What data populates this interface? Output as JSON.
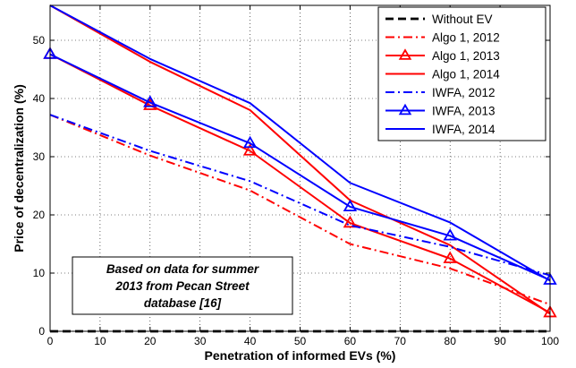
{
  "chart_data": {
    "type": "line",
    "xlabel": "Penetration of informed EVs (%)",
    "ylabel": "Price of decentralization (%)",
    "xlim": [
      0,
      100
    ],
    "ylim": [
      0,
      56
    ],
    "xticks": [
      0,
      10,
      20,
      30,
      40,
      50,
      60,
      70,
      80,
      90,
      100
    ],
    "yticks": [
      0,
      10,
      20,
      30,
      40,
      50
    ],
    "grid": "dotted",
    "legend_position": "top-right",
    "x": [
      0,
      20,
      40,
      60,
      80,
      100
    ],
    "series": [
      {
        "name": "Without EV",
        "values": [
          0,
          0,
          0,
          0,
          0,
          0
        ],
        "color": "#000000",
        "dash": "dashed",
        "marker": "none"
      },
      {
        "name": "Algo 1, 2012",
        "values": [
          37.2,
          30.2,
          24.2,
          15.0,
          10.8,
          4.6
        ],
        "color": "#ff0000",
        "dash": "dashdot",
        "marker": "none"
      },
      {
        "name": "Algo 1, 2013",
        "values": [
          47.6,
          38.8,
          31.0,
          18.6,
          12.5,
          3.2
        ],
        "color": "#ff0000",
        "dash": "solid",
        "marker": "triangle"
      },
      {
        "name": "Algo 1, 2014",
        "values": [
          56.0,
          46.3,
          38.0,
          22.5,
          14.8,
          3.0
        ],
        "color": "#ff0000",
        "dash": "solid",
        "marker": "none"
      },
      {
        "name": "IWFA, 2012",
        "values": [
          37.2,
          31.0,
          25.8,
          18.2,
          14.5,
          9.6
        ],
        "color": "#0000ff",
        "dash": "dashdot",
        "marker": "none"
      },
      {
        "name": "IWFA, 2013",
        "values": [
          47.6,
          39.3,
          32.3,
          21.4,
          16.4,
          8.8
        ],
        "color": "#0000ff",
        "dash": "solid",
        "marker": "triangle"
      },
      {
        "name": "IWFA, 2014",
        "values": [
          56.0,
          46.8,
          39.2,
          25.5,
          18.7,
          8.7
        ],
        "color": "#0000ff",
        "dash": "solid",
        "marker": "none"
      }
    ],
    "annotation": {
      "lines": [
        "Based on data for summer",
        "2013 from Pecan Street",
        "database [16]"
      ]
    }
  }
}
